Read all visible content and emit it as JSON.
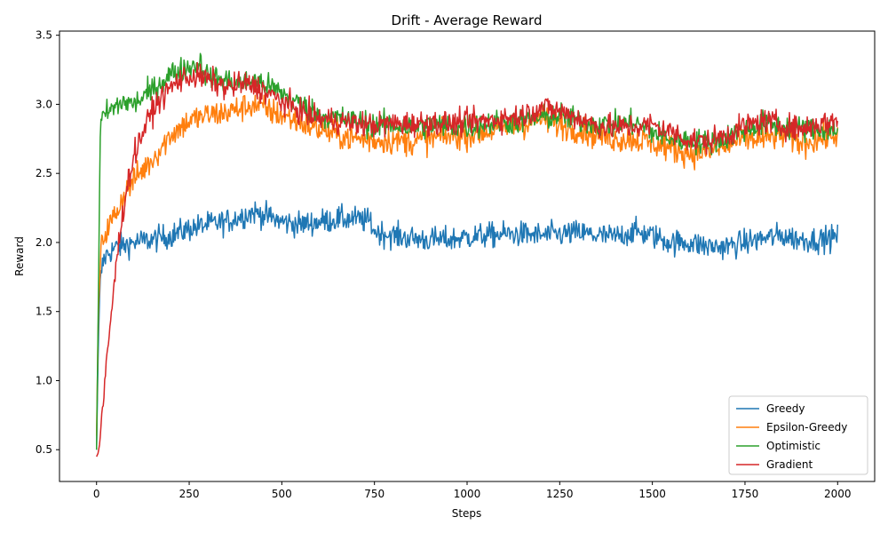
{
  "chart_data": {
    "type": "line",
    "title": "Drift - Average Reward",
    "xlabel": "Steps",
    "ylabel": "Reward",
    "xlim": [
      -100,
      2100
    ],
    "ylim": [
      0.27,
      3.53
    ],
    "xticks": [
      0,
      250,
      500,
      750,
      1000,
      1250,
      1500,
      1750,
      2000
    ],
    "yticks": [
      0.5,
      1.0,
      1.5,
      2.0,
      2.5,
      3.0,
      3.5
    ],
    "xtick_labels": [
      "0",
      "250",
      "500",
      "750",
      "1000",
      "1250",
      "1500",
      "1750",
      "2000"
    ],
    "ytick_labels": [
      "0.5",
      "1.0",
      "1.5",
      "2.0",
      "2.5",
      "3.0",
      "3.5"
    ],
    "grid": false,
    "legend_position": "lower-right",
    "series": [
      {
        "name": "Greedy",
        "color": "#1f77b4",
        "x": [
          0,
          5,
          10,
          15,
          20,
          30,
          40,
          50,
          75,
          100,
          150,
          200,
          250,
          300,
          350,
          400,
          425,
          450,
          500,
          550,
          600,
          650,
          700,
          740,
          750,
          800,
          850,
          900,
          950,
          1000,
          1050,
          1100,
          1150,
          1200,
          1250,
          1300,
          1350,
          1400,
          1450,
          1500,
          1550,
          1600,
          1650,
          1700,
          1750,
          1800,
          1850,
          1900,
          1950,
          2000
        ],
        "y": [
          0.5,
          1.3,
          1.7,
          1.82,
          1.88,
          1.92,
          1.94,
          1.96,
          1.98,
          2.0,
          2.02,
          2.05,
          2.1,
          2.13,
          2.15,
          2.2,
          2.22,
          2.2,
          2.15,
          2.13,
          2.15,
          2.17,
          2.17,
          2.15,
          2.08,
          2.05,
          2.03,
          2.02,
          2.02,
          2.04,
          2.05,
          2.06,
          2.06,
          2.05,
          2.06,
          2.07,
          2.05,
          2.04,
          2.08,
          2.05,
          2.0,
          2.0,
          1.97,
          1.97,
          2.0,
          2.03,
          2.05,
          2.02,
          2.02,
          2.04
        ]
      },
      {
        "name": "Epsilon-Greedy",
        "color": "#ff7f0e",
        "x": [
          0,
          5,
          10,
          15,
          20,
          30,
          40,
          50,
          75,
          100,
          150,
          200,
          250,
          300,
          350,
          400,
          425,
          450,
          500,
          550,
          600,
          650,
          700,
          750,
          800,
          850,
          900,
          950,
          1000,
          1050,
          1100,
          1150,
          1200,
          1250,
          1300,
          1350,
          1400,
          1450,
          1500,
          1550,
          1600,
          1650,
          1700,
          1750,
          1800,
          1850,
          1900,
          1950,
          2000
        ],
        "y": [
          0.6,
          1.5,
          1.85,
          2.0,
          2.05,
          2.1,
          2.15,
          2.2,
          2.35,
          2.45,
          2.6,
          2.78,
          2.88,
          2.92,
          2.94,
          2.98,
          3.0,
          2.97,
          2.92,
          2.87,
          2.82,
          2.78,
          2.75,
          2.74,
          2.74,
          2.73,
          2.75,
          2.77,
          2.78,
          2.8,
          2.83,
          2.85,
          2.9,
          2.85,
          2.82,
          2.78,
          2.75,
          2.75,
          2.72,
          2.68,
          2.65,
          2.65,
          2.7,
          2.75,
          2.75,
          2.78,
          2.72,
          2.75,
          2.78
        ]
      },
      {
        "name": "Optimistic",
        "color": "#2ca02c",
        "x": [
          0,
          5,
          10,
          15,
          20,
          30,
          40,
          50,
          75,
          100,
          150,
          200,
          250,
          280,
          300,
          350,
          400,
          425,
          450,
          500,
          550,
          600,
          650,
          700,
          750,
          800,
          850,
          900,
          950,
          1000,
          1050,
          1100,
          1150,
          1200,
          1250,
          1300,
          1350,
          1400,
          1450,
          1500,
          1550,
          1600,
          1650,
          1700,
          1750,
          1800,
          1850,
          1900,
          1950,
          2000
        ],
        "y": [
          0.5,
          1.6,
          2.8,
          2.88,
          2.92,
          2.94,
          2.96,
          2.98,
          3.02,
          3.0,
          3.1,
          3.22,
          3.27,
          3.3,
          3.2,
          3.17,
          3.15,
          3.17,
          3.15,
          3.08,
          3.0,
          2.92,
          2.9,
          2.88,
          2.85,
          2.85,
          2.83,
          2.85,
          2.84,
          2.84,
          2.86,
          2.87,
          2.88,
          2.9,
          2.92,
          2.88,
          2.86,
          2.85,
          2.87,
          2.8,
          2.75,
          2.74,
          2.72,
          2.76,
          2.82,
          2.86,
          2.84,
          2.82,
          2.82,
          2.82
        ]
      },
      {
        "name": "Gradient",
        "color": "#d62728",
        "x": [
          0,
          5,
          10,
          15,
          20,
          30,
          40,
          50,
          60,
          75,
          90,
          100,
          125,
          150,
          175,
          200,
          225,
          250,
          275,
          300,
          350,
          400,
          425,
          450,
          500,
          550,
          600,
          650,
          700,
          750,
          800,
          850,
          900,
          950,
          1000,
          1050,
          1100,
          1150,
          1200,
          1250,
          1300,
          1350,
          1400,
          1450,
          1500,
          1550,
          1600,
          1650,
          1700,
          1750,
          1800,
          1850,
          1900,
          1950,
          2000
        ],
        "y": [
          0.45,
          0.48,
          0.6,
          0.75,
          0.9,
          1.2,
          1.5,
          1.75,
          2.0,
          2.3,
          2.5,
          2.62,
          2.8,
          2.95,
          3.05,
          3.12,
          3.18,
          3.2,
          3.2,
          3.18,
          3.12,
          3.15,
          3.13,
          3.1,
          3.02,
          2.95,
          2.9,
          2.88,
          2.86,
          2.85,
          2.86,
          2.86,
          2.87,
          2.86,
          2.87,
          2.88,
          2.9,
          2.92,
          2.98,
          2.95,
          2.9,
          2.85,
          2.83,
          2.84,
          2.85,
          2.8,
          2.74,
          2.73,
          2.78,
          2.84,
          2.88,
          2.85,
          2.82,
          2.86,
          2.88
        ]
      }
    ]
  }
}
